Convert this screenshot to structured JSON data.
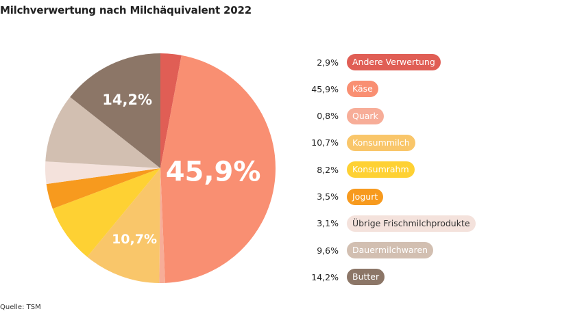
{
  "title": "Milchverwertung nach Milchäquivalent 2022",
  "source": "Quelle: TSM",
  "chart_data": {
    "type": "pie",
    "title": "Milchverwertung nach Milchäquivalent 2022",
    "slices": [
      {
        "label": "Andere Verwertung",
        "value": 2.9,
        "display": "2,9%",
        "color": "#e05e55",
        "text_color": "#ffffff"
      },
      {
        "label": "Käse",
        "value": 45.9,
        "display": "45,9%",
        "color": "#f98f72",
        "text_color": "#ffffff",
        "slice_label": "45,9%"
      },
      {
        "label": "Quark",
        "value": 0.8,
        "display": "0,8%",
        "color": "#f7ad98",
        "text_color": "#ffffff"
      },
      {
        "label": "Konsummilch",
        "value": 10.7,
        "display": "10,7%",
        "color": "#f9c66a",
        "text_color": "#ffffff",
        "slice_label": "10,7%"
      },
      {
        "label": "Konsumrahm",
        "value": 8.2,
        "display": "8,2%",
        "color": "#fed133",
        "text_color": "#ffffff"
      },
      {
        "label": "Jogurt",
        "value": 3.5,
        "display": "3,5%",
        "color": "#f79a1e",
        "text_color": "#ffffff"
      },
      {
        "label": "Übrige Frischmilchprodukte",
        "value": 3.1,
        "display": "3,1%",
        "color": "#f4e2dc",
        "text_color": "#333333"
      },
      {
        "label": "Dauermilchwaren",
        "value": 9.6,
        "display": "9,6%",
        "color": "#d2bfb1",
        "text_color": "#ffffff"
      },
      {
        "label": "Butter",
        "value": 14.2,
        "display": "14,2%",
        "color": "#8c7667",
        "text_color": "#ffffff",
        "slice_label": "14,2%"
      }
    ],
    "legend_position": "right"
  }
}
